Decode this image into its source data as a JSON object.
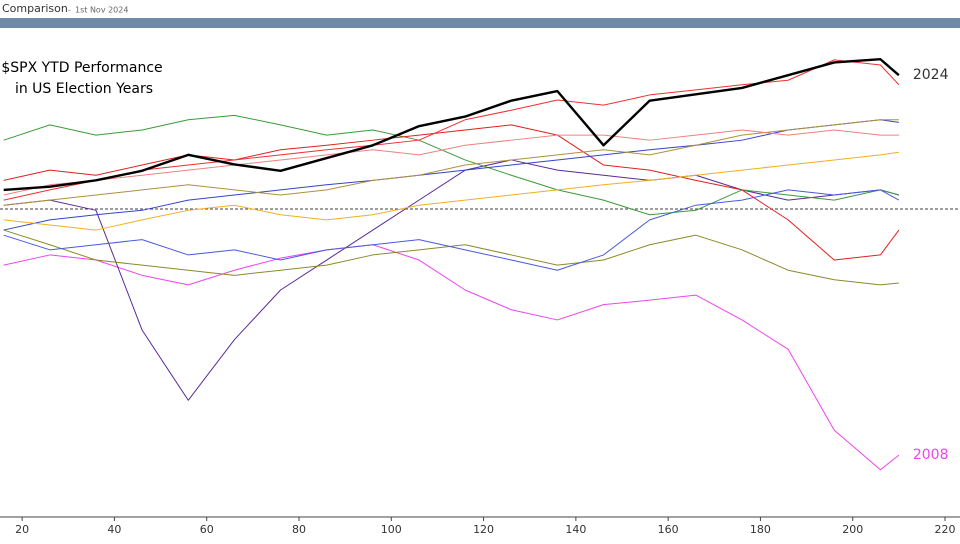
{
  "header": {
    "title": "Comparison",
    "date": "1st Nov 2024"
  },
  "chart_data": {
    "type": "line",
    "title": "$SPX YTD Performance",
    "subtitle": "in US Election Years",
    "x": [
      16,
      26,
      36,
      46,
      56,
      66,
      76,
      86,
      96,
      106,
      116,
      126,
      136,
      146,
      156,
      166,
      176,
      186,
      196,
      206,
      210
    ],
    "xlim": [
      15.2,
      223.25
    ],
    "xticks": [
      20,
      40,
      60,
      80,
      100,
      120,
      140,
      160,
      180,
      200,
      220
    ],
    "ylim": [
      -48,
      28.4
    ],
    "series": [
      {
        "name": "2024",
        "color": "#000000",
        "values": [
          3,
          3.5,
          4.5,
          6,
          8.5,
          7,
          6,
          8,
          10,
          13,
          14.5,
          17,
          18.5,
          10,
          17,
          18,
          19,
          21,
          23,
          23.5,
          21
        ]
      },
      {
        "name": "2008",
        "color": "#ee44ee",
        "values": [
          -8.8,
          -7.2,
          -8,
          -10.4,
          -11.9,
          -9.6,
          -7.7,
          -6.4,
          -5.6,
          -8,
          -12.7,
          -15.8,
          -17.4,
          -15,
          -14.3,
          -13.5,
          -17.4,
          -22,
          -34.7,
          -40.9,
          -38.6
        ]
      },
      {
        "color": "#5b2a96",
        "values": [
          0.6,
          1.4,
          -0.2,
          -19,
          -30,
          -20.5,
          -12.7,
          -8,
          -3.3,
          1.4,
          6.1,
          7.7,
          6.1,
          5.3,
          4.5,
          5.3,
          3,
          1.4,
          2.2,
          3,
          2.2
        ]
      },
      {
        "color": "#3a9a3a",
        "values": [
          10.8,
          13.2,
          11.6,
          12.4,
          14,
          14.7,
          13.2,
          11.6,
          12.4,
          10.8,
          7.7,
          5.3,
          3,
          1.4,
          -0.9,
          -0.2,
          3,
          2.2,
          1.4,
          3,
          2.2
        ]
      },
      {
        "color": "#8a8a2a",
        "values": [
          -3.3,
          -5.6,
          -8,
          -8.8,
          -9.6,
          -10.4,
          -9.6,
          -8.8,
          -7.2,
          -6.4,
          -5.6,
          -7.2,
          -8.8,
          -8,
          -5.6,
          -4.1,
          -6.4,
          -9.6,
          -11.1,
          -11.9,
          -11.6
        ]
      },
      {
        "color": "#e02020",
        "values": [
          4.5,
          6.1,
          5.3,
          6.9,
          8.5,
          7.7,
          9.3,
          10,
          10.8,
          11.6,
          12.4,
          13.2,
          11.6,
          6.9,
          6.1,
          4.5,
          3,
          -1.7,
          -8,
          -7.2,
          -3.3
        ]
      },
      {
        "color": "#f03030",
        "values": [
          1.4,
          3,
          4.5,
          6.1,
          6.9,
          7.7,
          8.5,
          9.3,
          10,
          10.8,
          14,
          15.5,
          17.1,
          16.3,
          17.9,
          18.7,
          19.5,
          20.2,
          23.4,
          22.6,
          19.5
        ]
      },
      {
        "color": "#3344cc",
        "values": [
          -3.3,
          -1.7,
          -0.9,
          -0.2,
          1.4,
          2.2,
          3,
          3.8,
          4.5,
          5.3,
          6.1,
          6.9,
          7.7,
          8.5,
          9.3,
          10,
          10.8,
          12.4,
          13.2,
          14,
          13.6
        ]
      },
      {
        "color": "#4a5ae0",
        "values": [
          -4.1,
          -6.4,
          -5.6,
          -4.8,
          -7.2,
          -6.4,
          -8,
          -6.4,
          -5.6,
          -4.8,
          -6.4,
          -8,
          -9.6,
          -7.2,
          -1.7,
          0.6,
          1.4,
          3,
          2.2,
          3,
          1.4
        ]
      },
      {
        "color": "#f0b020",
        "values": [
          -1.7,
          -2.5,
          -3.3,
          -1.7,
          -0.2,
          0.6,
          -0.9,
          -1.7,
          -0.9,
          0.6,
          1.4,
          2.2,
          3,
          3.8,
          4.5,
          5.3,
          6.1,
          6.9,
          7.7,
          8.5,
          8.9
        ]
      },
      {
        "color": "#b09040",
        "values": [
          0.6,
          1.4,
          2.2,
          3,
          3.8,
          3,
          2.2,
          3,
          4.5,
          5.3,
          6.9,
          7.7,
          8.5,
          9.3,
          8.5,
          10,
          11.6,
          12.4,
          13.2,
          14,
          14
        ]
      },
      {
        "color": "#f08080",
        "values": [
          2.2,
          3.8,
          4.5,
          5.3,
          6.1,
          6.9,
          7.7,
          8.5,
          9.3,
          8.5,
          10,
          10.8,
          11.6,
          11.6,
          10.8,
          11.6,
          12.4,
          11.6,
          12.4,
          11.6,
          11.6
        ]
      }
    ]
  }
}
